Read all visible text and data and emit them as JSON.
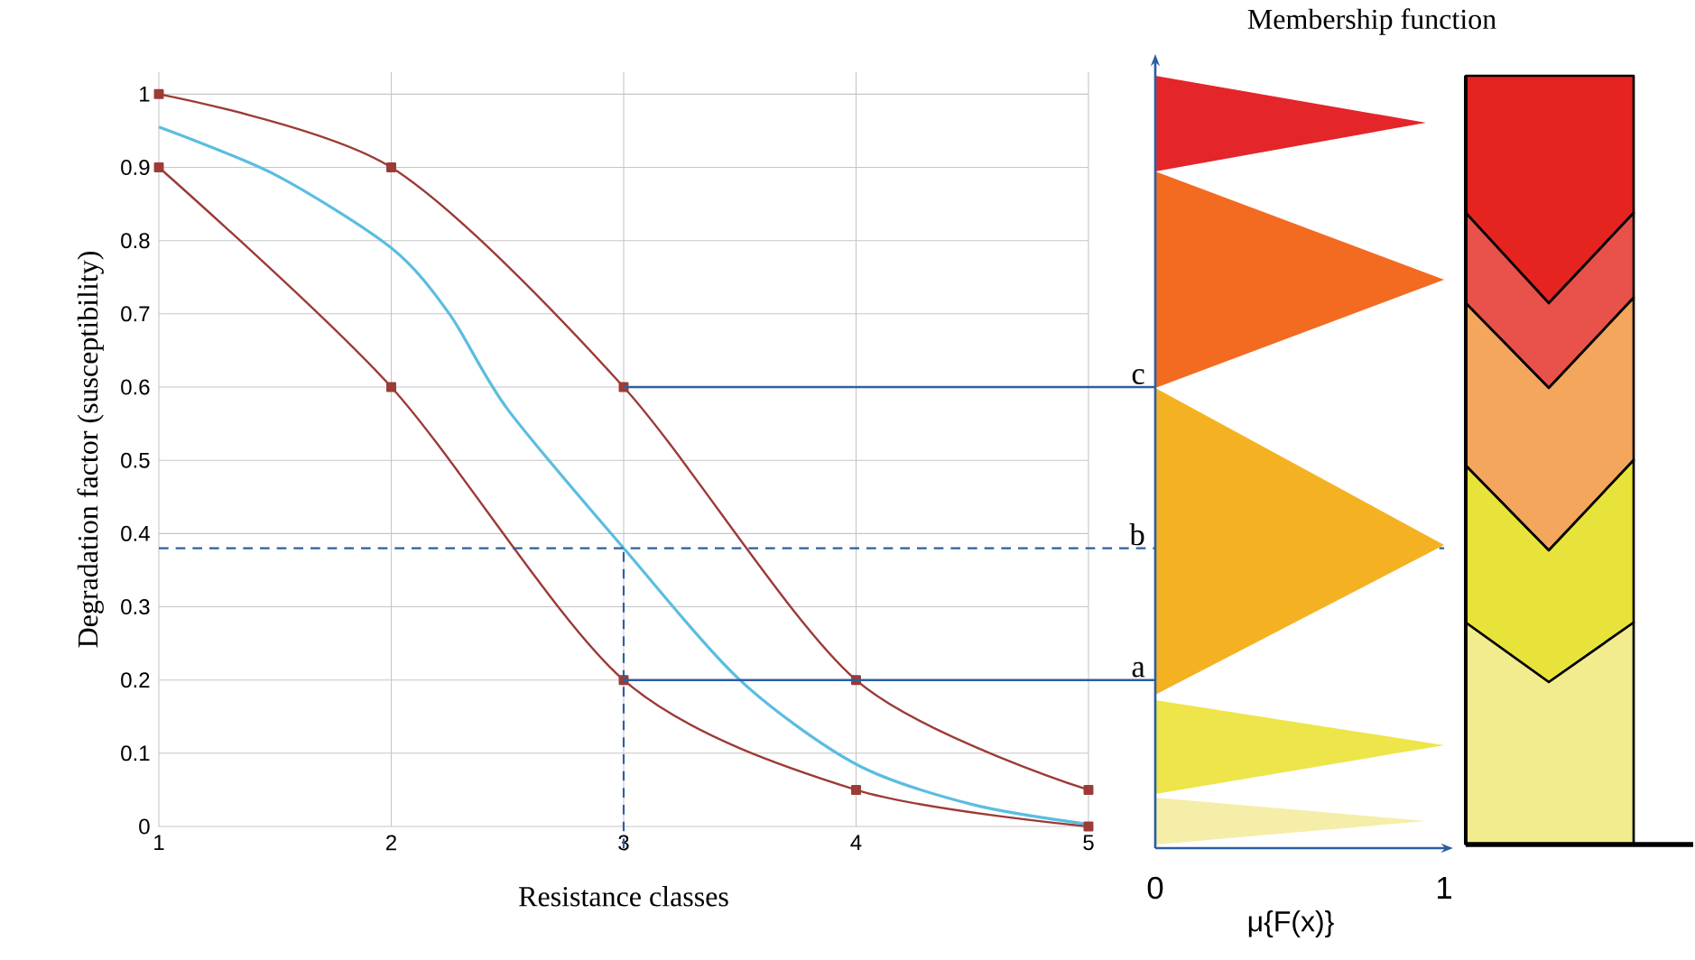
{
  "chart_data": {
    "type": "line",
    "xlabel": "Resistance classes",
    "ylabel": "Degradation factor (susceptibility)",
    "x": [
      1,
      2,
      3,
      4,
      5
    ],
    "xlim": [
      1,
      5
    ],
    "ylim": [
      0,
      1.03
    ],
    "xticks": [
      1,
      2,
      3,
      4,
      5
    ],
    "yticks": [
      0,
      0.1,
      0.2,
      0.3,
      0.4,
      0.5,
      0.6,
      0.7,
      0.8,
      0.9,
      1
    ],
    "grid": true,
    "series": [
      {
        "color": "#9c3b37",
        "marker": "square",
        "values": [
          1,
          0.9,
          0.6,
          0.2,
          0.05
        ]
      },
      {
        "color": "#9c3b37",
        "marker": "square",
        "values": [
          0.9,
          0.6,
          0.2,
          0.05,
          0
        ]
      },
      {
        "color": "#5bbde0",
        "marker": "none",
        "x": [
          1,
          1.5,
          2,
          2.25,
          2.5,
          3,
          3.5,
          4,
          4.5,
          5
        ],
        "values": [
          0.955,
          0.89,
          0.79,
          0.7,
          0.57,
          0.38,
          0.2,
          0.085,
          0.03,
          0.003
        ]
      }
    ],
    "ref_lines": [
      {
        "axis": "y",
        "value": 0.38,
        "label": "b",
        "line_style": "dashed",
        "color": "#2c5fa0"
      },
      {
        "axis": "x",
        "value": 3,
        "line_style": "dashed",
        "color": "#2c5fa0"
      }
    ],
    "annotations": [
      "Membership function",
      "0",
      "1",
      "μ{F(x)}",
      {
        "text": "c",
        "x": 3,
        "y": 0.6
      },
      {
        "text": "a",
        "x": 3,
        "y": 0.2
      }
    ]
  }
}
